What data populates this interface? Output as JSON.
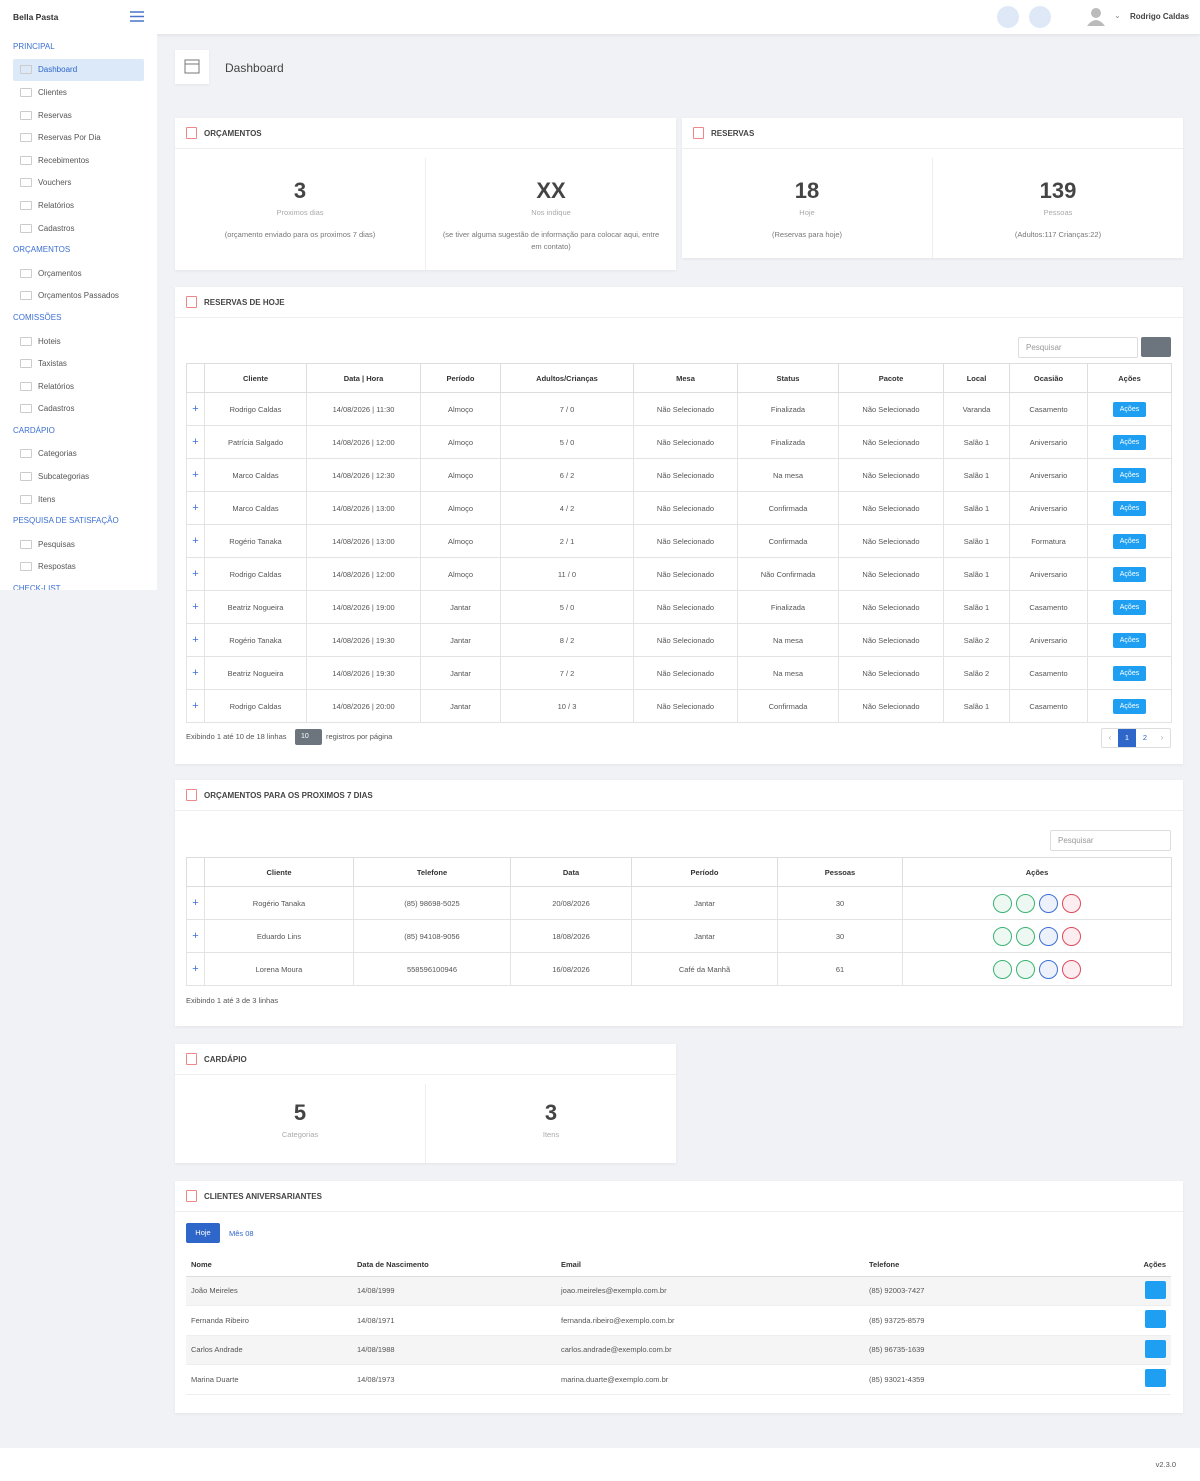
{
  "header": {
    "brand": "Bella Pasta",
    "user": "Rodrigo Caldas"
  },
  "sidebar": {
    "sections": [
      {
        "title": "PRINCIPAL",
        "items": [
          "Dashboard",
          "Clientes",
          "Reservas",
          "Reservas Por Dia",
          "Recebimentos",
          "Vouchers",
          "Relatórios",
          "Cadastros"
        ]
      },
      {
        "title": "ORÇAMENTOS",
        "items": [
          "Orçamentos",
          "Orçamentos Passados"
        ]
      },
      {
        "title": "COMISSÕES",
        "items": [
          "Hoteis",
          "Taxistas",
          "Relatórios",
          "Cadastros"
        ]
      },
      {
        "title": "CARDÁPIO",
        "items": [
          "Categorias",
          "Subcategorias",
          "Itens"
        ]
      },
      {
        "title": "PESQUISA DE SATISFAÇÃO",
        "items": [
          "Pesquisas",
          "Respostas"
        ]
      },
      {
        "title": "CHECK-LIST",
        "items": []
      }
    ]
  },
  "page_title": "Dashboard",
  "orcamentos": {
    "title": "ORÇAMENTOS",
    "stats": [
      {
        "value": "3",
        "label": "Proximos dias",
        "note": "(orçamento enviado para os proximos 7 dias)"
      },
      {
        "value": "XX",
        "label": "Nos indique",
        "note": "(se tiver alguma sugestão de informação para colocar aqui, entre em contato)"
      }
    ]
  },
  "reservas": {
    "title": "RESERVAS",
    "stats": [
      {
        "value": "18",
        "label": "Hoje",
        "note": "(Reservas para hoje)"
      },
      {
        "value": "139",
        "label": "Pessoas",
        "note": "(Adultos:117 Crianças:22)"
      }
    ]
  },
  "reservas_hoje": {
    "title": "RESERVAS DE HOJE",
    "search_placeholder": "Pesquisar",
    "columns": [
      "Cliente",
      "Data | Hora",
      "Período",
      "Adultos/Crianças",
      "Mesa",
      "Status",
      "Pacote",
      "Local",
      "Ocasião",
      "Ações"
    ],
    "rows": [
      [
        "Rodrigo Caldas",
        "14/08/2026 | 11:30",
        "Almoço",
        "7 / 0",
        "Não Selecionado",
        "Finalizada",
        "Não Selecionado",
        "Varanda",
        "Casamento"
      ],
      [
        "Patrícia Salgado",
        "14/08/2026 | 12:00",
        "Almoço",
        "5 / 0",
        "Não Selecionado",
        "Finalizada",
        "Não Selecionado",
        "Salão 1",
        "Aniversario"
      ],
      [
        "Marco Caldas",
        "14/08/2026 | 12:30",
        "Almoço",
        "6 / 2",
        "Não Selecionado",
        "Na mesa",
        "Não Selecionado",
        "Salão 1",
        "Aniversario"
      ],
      [
        "Marco Caldas",
        "14/08/2026 | 13:00",
        "Almoço",
        "4 / 2",
        "Não Selecionado",
        "Confirmada",
        "Não Selecionado",
        "Salão 1",
        "Aniversario"
      ],
      [
        "Rogério Tanaka",
        "14/08/2026 | 13:00",
        "Almoço",
        "2 / 1",
        "Não Selecionado",
        "Confirmada",
        "Não Selecionado",
        "Salão 1",
        "Formatura"
      ],
      [
        "Rodrigo Caldas",
        "14/08/2026 | 12:00",
        "Almoço",
        "11 / 0",
        "Não Selecionado",
        "Não Confirmada",
        "Não Selecionado",
        "Salão 1",
        "Aniversario"
      ],
      [
        "Beatriz Nogueira",
        "14/08/2026 | 19:00",
        "Jantar",
        "5 / 0",
        "Não Selecionado",
        "Finalizada",
        "Não Selecionado",
        "Salão 1",
        "Casamento"
      ],
      [
        "Rogério Tanaka",
        "14/08/2026 | 19:30",
        "Jantar",
        "8 / 2",
        "Não Selecionado",
        "Na mesa",
        "Não Selecionado",
        "Salão 2",
        "Aniversario"
      ],
      [
        "Beatriz Nogueira",
        "14/08/2026 | 19:30",
        "Jantar",
        "7 / 2",
        "Não Selecionado",
        "Na mesa",
        "Não Selecionado",
        "Salão 2",
        "Casamento"
      ],
      [
        "Rodrigo Caldas",
        "14/08/2026 | 20:00",
        "Jantar",
        "10 / 3",
        "Não Selecionado",
        "Confirmada",
        "Não Selecionado",
        "Salão 1",
        "Casamento"
      ]
    ],
    "action_label": "Ações",
    "summary": "Exibindo 1 até 10 de 18 linhas",
    "page_size": "10",
    "page_size_label": "registros por página",
    "pages": [
      "1",
      "2"
    ]
  },
  "orcamentos_proximos": {
    "title": "ORÇAMENTOS PARA OS PROXIMOS 7 DIAS",
    "search_placeholder": "Pesquisar",
    "columns": [
      "Cliente",
      "Telefone",
      "Data",
      "Período",
      "Pessoas",
      "Ações"
    ],
    "rows": [
      [
        "Rogério Tanaka",
        "(85) 98698-5025",
        "20/08/2026",
        "Jantar",
        "30"
      ],
      [
        "Eduardo Lins",
        "(85) 94108-9056",
        "18/08/2026",
        "Jantar",
        "30"
      ],
      [
        "Lorena Moura",
        "558596100946",
        "16/08/2026",
        "Café da Manhã",
        "61"
      ]
    ],
    "summary": "Exibindo 1 até 3 de 3 linhas"
  },
  "cardapio": {
    "title": "CARDÁPIO",
    "stats": [
      {
        "value": "5",
        "label": "Categorias"
      },
      {
        "value": "3",
        "label": "Itens"
      }
    ]
  },
  "aniversariantes": {
    "title": "CLIENTES ANIVERSARIANTES",
    "tabs": [
      "Hoje",
      "Mês 08"
    ],
    "columns": [
      "Nome",
      "Data de Nascimento",
      "Email",
      "Telefone",
      "Ações"
    ],
    "rows": [
      [
        "João Meireles",
        "14/08/1999",
        "joao.meireles@exemplo.com.br",
        "(85) 92003-7427"
      ],
      [
        "Fernanda Ribeiro",
        "14/08/1971",
        "fernanda.ribeiro@exemplo.com.br",
        "(85) 93725-8579"
      ],
      [
        "Carlos Andrade",
        "14/08/1988",
        "carlos.andrade@exemplo.com.br",
        "(85) 96735-1639"
      ],
      [
        "Marina Duarte",
        "14/08/1973",
        "marina.duarte@exemplo.com.br",
        "(85) 93021-4359"
      ]
    ]
  },
  "footer": {
    "version": "v2.3.0"
  }
}
